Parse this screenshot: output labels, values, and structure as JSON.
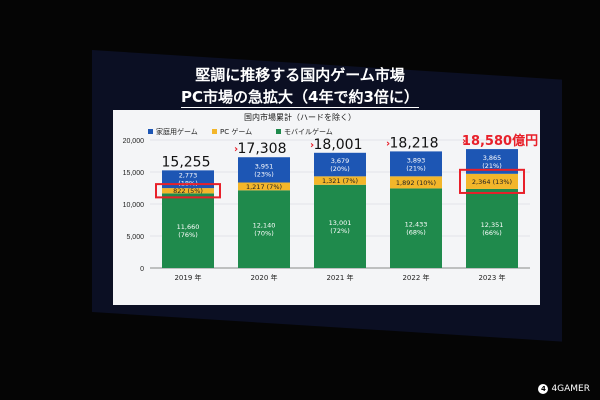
{
  "slide": {
    "title_line1": "堅調に推移する国内ゲーム市場",
    "title_line2": "PC市場の急拡大（4年で約3倍に）",
    "subtitle": "国内市場累計（ハードを除く）"
  },
  "watermark": "4GAMER",
  "chart_data": {
    "type": "bar",
    "stacked": true,
    "categories": [
      "2019 年",
      "2020 年",
      "2021 年",
      "2022 年",
      "2023 年"
    ],
    "ylim": [
      0,
      20000
    ],
    "yticks": [
      "0",
      "5,000",
      "10,000",
      "15,000",
      "20,000"
    ],
    "grid": true,
    "legend_position": "top-left",
    "series": [
      {
        "name": "モバイルゲーム",
        "color": "#1f8a4c",
        "values": [
          11660,
          12140,
          13001,
          12433,
          12351
        ],
        "labels": [
          "11,660\n(76%)",
          "12,140\n(70%)",
          "13,001\n(72%)",
          "12,433\n(68%)",
          "12,351\n(66%)"
        ]
      },
      {
        "name": "PC ゲーム",
        "color": "#f3b62a",
        "values": [
          822,
          1217,
          1321,
          1892,
          2364
        ],
        "labels": [
          "822  (5%)",
          "1,217  (7%)",
          "1,321  (7%)",
          "1,892  (10%)",
          "2,364  (13%)"
        ]
      },
      {
        "name": "家庭用ゲーム",
        "color": "#1d56b4",
        "values": [
          2773,
          3951,
          3679,
          3893,
          3865
        ],
        "labels": [
          "2,773\n(18%)",
          "3,951\n(23%)",
          "3,679\n(20%)",
          "3,893\n(21%)",
          "3,865\n(21%)"
        ]
      }
    ],
    "totals": [
      "15,255",
      "17,308",
      "18,001",
      "18,218",
      "18,580億円"
    ],
    "highlight_total_index": 4,
    "highlight_color": "#e8202a",
    "highlight_boxes": [
      {
        "category_index": 0,
        "series": "PC ゲーム"
      },
      {
        "category_index": 4,
        "series": "PC ゲーム"
      }
    ]
  }
}
